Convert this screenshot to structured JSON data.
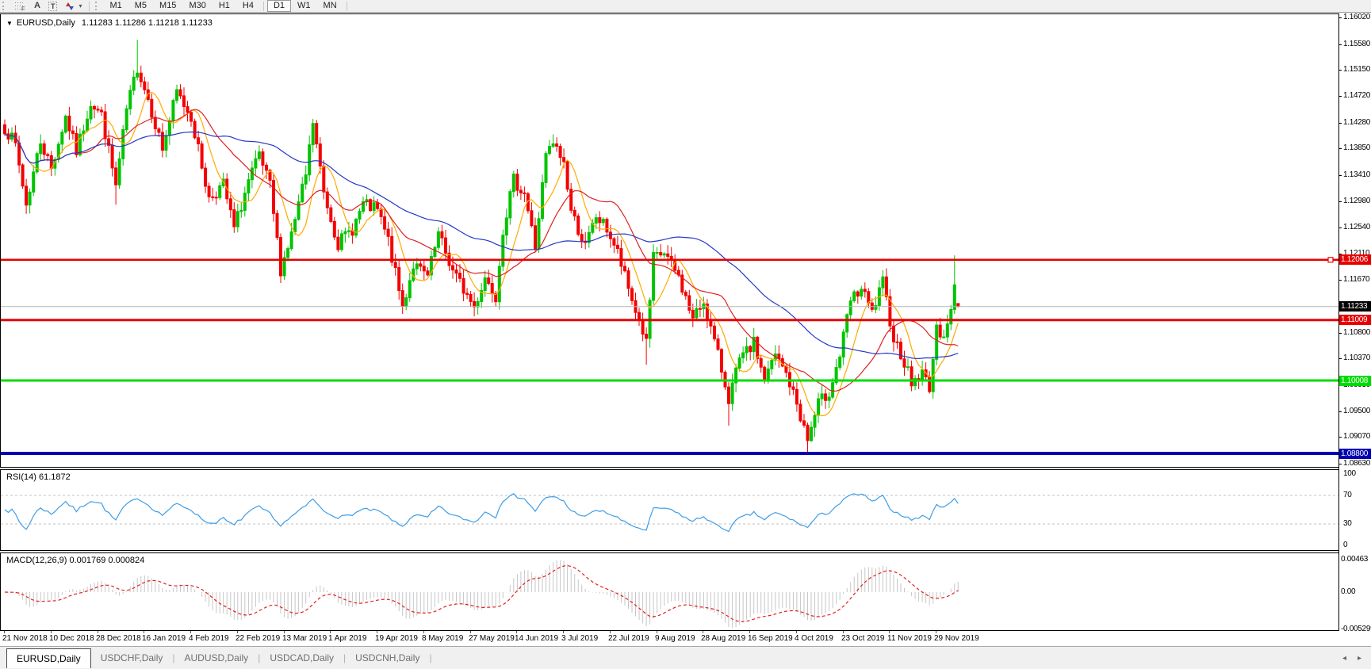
{
  "toolbar": {
    "icons": [
      {
        "name": "crosshair-grid",
        "glyph": "F"
      },
      {
        "name": "text-label",
        "glyph": "A"
      },
      {
        "name": "text-box",
        "glyph": "T"
      },
      {
        "name": "arrow-objects",
        "glyph": "✦"
      },
      {
        "name": "dropdown-caret",
        "glyph": "▾"
      }
    ],
    "timeframes": [
      "M1",
      "M5",
      "M15",
      "M30",
      "H1",
      "H4",
      "D1",
      "W1",
      "MN"
    ],
    "active_timeframe": "D1"
  },
  "chart_header": {
    "collapse_glyph": "▼",
    "symbol": "EURUSD,Daily",
    "ohlc": "1.11283 1.11286 1.11218 1.11233"
  },
  "chart_data": {
    "type": "candlestick",
    "symbol": "EURUSD",
    "timeframe": "Daily",
    "last_candle": [
      1.11283,
      1.11286,
      1.11218,
      1.11233
    ],
    "colors": {
      "up": "#00C400",
      "down": "#F40000",
      "background": "#ffffff"
    },
    "price_axis": {
      "range": [
        1.0863,
        1.1602
      ],
      "ticks": [
        "1.16020",
        "1.15580",
        "1.15150",
        "1.14720",
        "1.14280",
        "1.13850",
        "1.13410",
        "1.12980",
        "1.12540",
        "1.12110",
        "1.11670",
        "1.10800",
        "1.10370",
        "1.09930",
        "1.09500",
        "1.09070",
        "1.08630"
      ]
    },
    "hlines": [
      {
        "price": 1.12006,
        "label": "1.12006",
        "color": "#e80000",
        "thickness": 2.5,
        "label_bg": "#e80000",
        "label_color": "#ffffff",
        "handle": true
      },
      {
        "price": 1.11233,
        "label": "1.11233",
        "color": "#b6b6b6",
        "thickness": 1,
        "label_bg": "#000000",
        "label_color": "#ffffff",
        "is_current_price": true
      },
      {
        "price": 1.11009,
        "label": "1.11009",
        "color": "#e80000",
        "thickness": 3,
        "label_bg": "#e80000",
        "label_color": "#ffffff"
      },
      {
        "price": 1.10008,
        "label": "1.10008",
        "color": "#00dc00",
        "thickness": 3,
        "label_bg": "#00dc00",
        "label_color": "#ffffff"
      },
      {
        "price": 1.088,
        "label": "1.08800",
        "color": "#0000b4",
        "thickness": 4,
        "label_bg": "#0000b4",
        "label_color": "#ffffff"
      }
    ],
    "date_labels": [
      "21 Nov 2018",
      "10 Dec 2018",
      "28 Dec 2018",
      "16 Jan 2019",
      "4 Feb 2019",
      "22 Feb 2019",
      "13 Mar 2019",
      "1 Apr 2019",
      "19 Apr 2019",
      "8 May 2019",
      "27 May 2019",
      "14 Jun 2019",
      "3 Jul 2019",
      "22 Jul 2019",
      "9 Aug 2019",
      "28 Aug 2019",
      "16 Sep 2019",
      "4 Oct 2019",
      "23 Oct 2019",
      "11 Nov 2019",
      "29 Nov 2019"
    ],
    "candles_per_label": 13,
    "candle_count": 267,
    "price_waypoints": [
      [
        0,
        1.142
      ],
      [
        3,
        1.139
      ],
      [
        6,
        1.1292
      ],
      [
        10,
        1.1398
      ],
      [
        13,
        1.1352
      ],
      [
        17,
        1.1438
      ],
      [
        20,
        1.138
      ],
      [
        24,
        1.1462
      ],
      [
        27,
        1.144
      ],
      [
        31,
        1.1322
      ],
      [
        34,
        1.1448
      ],
      [
        37,
        1.152
      ],
      [
        40,
        1.1468
      ],
      [
        44,
        1.1385
      ],
      [
        48,
        1.1478
      ],
      [
        52,
        1.1438
      ],
      [
        57,
        1.1302
      ],
      [
        61,
        1.1325
      ],
      [
        64,
        1.1252
      ],
      [
        68,
        1.133
      ],
      [
        71,
        1.1372
      ],
      [
        74,
        1.1322
      ],
      [
        77,
        1.1185
      ],
      [
        80,
        1.1242
      ],
      [
        84,
        1.134
      ],
      [
        86,
        1.1428
      ],
      [
        89,
        1.1312
      ],
      [
        93,
        1.1228
      ],
      [
        97,
        1.1252
      ],
      [
        100,
        1.1292
      ],
      [
        104,
        1.1282
      ],
      [
        107,
        1.1232
      ],
      [
        111,
        1.1122
      ],
      [
        114,
        1.1192
      ],
      [
        118,
        1.1172
      ],
      [
        121,
        1.1242
      ],
      [
        125,
        1.1182
      ],
      [
        128,
        1.1152
      ],
      [
        131,
        1.1122
      ],
      [
        134,
        1.1172
      ],
      [
        137,
        1.1142
      ],
      [
        139,
        1.1252
      ],
      [
        142,
        1.1332
      ],
      [
        145,
        1.1312
      ],
      [
        148,
        1.1222
      ],
      [
        151,
        1.1372
      ],
      [
        153,
        1.1392
      ],
      [
        156,
        1.1362
      ],
      [
        158,
        1.1282
      ],
      [
        162,
        1.1222
      ],
      [
        165,
        1.1272
      ],
      [
        168,
        1.1252
      ],
      [
        171,
        1.1212
      ],
      [
        174,
        1.1152
      ],
      [
        178,
        1.1082
      ],
      [
        179,
        1.1062
      ],
      [
        181,
        1.1202
      ],
      [
        184,
        1.1212
      ],
      [
        188,
        1.1172
      ],
      [
        192,
        1.1102
      ],
      [
        195,
        1.1132
      ],
      [
        199,
        1.1042
      ],
      [
        202,
        1.0972
      ],
      [
        205,
        1.1032
      ],
      [
        209,
        1.1062
      ],
      [
        212,
        1.1002
      ],
      [
        215,
        1.1042
      ],
      [
        218,
        1.1012
      ],
      [
        221,
        1.0962
      ],
      [
        224,
        1.0902
      ],
      [
        227,
        1.0962
      ],
      [
        230,
        1.0982
      ],
      [
        233,
        1.1042
      ],
      [
        236,
        1.1132
      ],
      [
        239,
        1.1152
      ],
      [
        242,
        1.1112
      ],
      [
        245,
        1.1162
      ],
      [
        248,
        1.1072
      ],
      [
        251,
        1.1032
      ],
      [
        253,
        1.0997
      ],
      [
        256,
        1.1012
      ],
      [
        258,
        1.0992
      ],
      [
        260,
        1.1082
      ],
      [
        262,
        1.1082
      ],
      [
        264,
        1.1112
      ],
      [
        265,
        1.1155
      ],
      [
        266,
        1.11233
      ]
    ],
    "spikes": [
      {
        "i": 37,
        "h": 1.1565
      },
      {
        "i": 31,
        "l": 1.1292
      },
      {
        "i": 77,
        "l": 1.1176
      },
      {
        "i": 111,
        "l": 1.1111
      },
      {
        "i": 131,
        "l": 1.1107
      },
      {
        "i": 179,
        "l": 1.1027
      },
      {
        "i": 202,
        "l": 1.0926
      },
      {
        "i": 224,
        "l": 1.0879
      },
      {
        "i": 265,
        "h": 1.1208
      }
    ],
    "moving_averages": [
      {
        "name": "ma-fast",
        "period": 8,
        "color": "#ffaa00"
      },
      {
        "name": "ma-medium",
        "period": 21,
        "color": "#e02020"
      },
      {
        "name": "ma-slow",
        "period": 55,
        "color": "#2438c8"
      }
    ],
    "rsi": {
      "label": "RSI(14) 61.1872",
      "period": 14,
      "value": 61.1872,
      "levels": [
        70,
        30
      ],
      "axis_ticks": [
        "100",
        "70",
        "30",
        "0"
      ],
      "axis_values": [
        100,
        70,
        30,
        0
      ],
      "color": "#3e9de6",
      "level_color": "#c0c0c0",
      "range": [
        0,
        100
      ]
    },
    "macd": {
      "label": "MACD(12,26,9) 0.001769 0.000824",
      "fast": 12,
      "slow": 26,
      "signal_period": 9,
      "value": 0.001769,
      "signal_value": 0.000824,
      "axis_ticks": [
        "0.00463",
        "0.00",
        "-0.005299"
      ],
      "axis_values": [
        0.00463,
        0,
        -0.005299
      ],
      "hist_color": "#c6c6c6",
      "signal_color": "#e02020"
    }
  },
  "tab_bar": {
    "tabs": [
      "EURUSD,Daily",
      "USDCHF,Daily",
      "AUDUSD,Daily",
      "USDCAD,Daily",
      "USDCNH,Daily"
    ],
    "active_tab": "EURUSD,Daily",
    "nav_left": "◂",
    "nav_right": "▸"
  }
}
